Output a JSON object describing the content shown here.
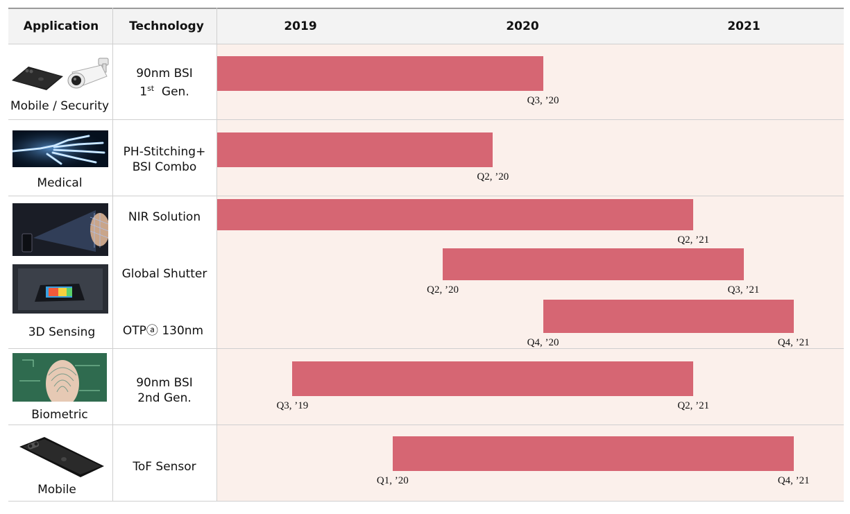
{
  "header": {
    "application": "Application",
    "technology": "Technology"
  },
  "rows": [
    {
      "application": "Mobile / Security",
      "technology_line1": "90nm BSI",
      "technology_line2_main": "1",
      "technology_line2_sup": "st",
      "technology_line2_rest": "Gen."
    },
    {
      "application": "Medical",
      "technology_line1": "PH-Stitching+",
      "technology_line2": "BSI Combo"
    },
    {
      "application": "3D Sensing",
      "technologies": [
        "NIR Solution",
        "Global Shutter",
        "OTPⓐ 130nm"
      ]
    },
    {
      "application": "Biometric",
      "technology_line1": "90nm BSI",
      "technology_line2": "2nd Gen."
    },
    {
      "application": "Mobile",
      "technology_line1": "ToF Sensor"
    }
  ],
  "icons": [
    "smartphone-icon",
    "security-camera-icon",
    "xray-hand-icon",
    "face-scan-icon",
    "depth-sensing-icon",
    "fingerprint-icon",
    "dual-camera-phone-icon"
  ],
  "colors": {
    "bar": "#d66673",
    "chart_background": "#fbf0eb",
    "header_background": "#f3f3f3"
  },
  "chart_data": {
    "type": "bar",
    "orientation": "horizontal-timeline",
    "x_axis_ticks": [
      "2019",
      "2020",
      "2021"
    ],
    "x_range_quarters": [
      "Q1 '19",
      "Q4 '21"
    ],
    "series": [
      {
        "technology": "90nm BSI 1st Gen.",
        "start": "",
        "end": "Q3, ’20",
        "start_quarter": 1,
        "end_quarter": 7
      },
      {
        "technology": "PH-Stitching+ BSI Combo",
        "start": "",
        "end": "Q2, ’20",
        "start_quarter": 1,
        "end_quarter": 6
      },
      {
        "technology": "NIR Solution",
        "start": "",
        "end": "Q2, ’21",
        "start_quarter": 1,
        "end_quarter": 10
      },
      {
        "technology": "Global Shutter",
        "start": "Q2, ’20",
        "end": "Q3, ’21",
        "start_quarter": 6,
        "end_quarter": 11
      },
      {
        "technology": "OTPⓐ 130nm",
        "start": "Q4, ’20",
        "end": "Q4, ’21",
        "start_quarter": 8,
        "end_quarter": 12
      },
      {
        "technology": "90nm BSI 2nd Gen.",
        "start": "Q3, ’19",
        "end": "Q2, ’21",
        "start_quarter": 3,
        "end_quarter": 10
      },
      {
        "technology": "ToF Sensor",
        "start": "Q1, ’20",
        "end": "Q4, ’21",
        "start_quarter": 5,
        "end_quarter": 12
      }
    ]
  }
}
